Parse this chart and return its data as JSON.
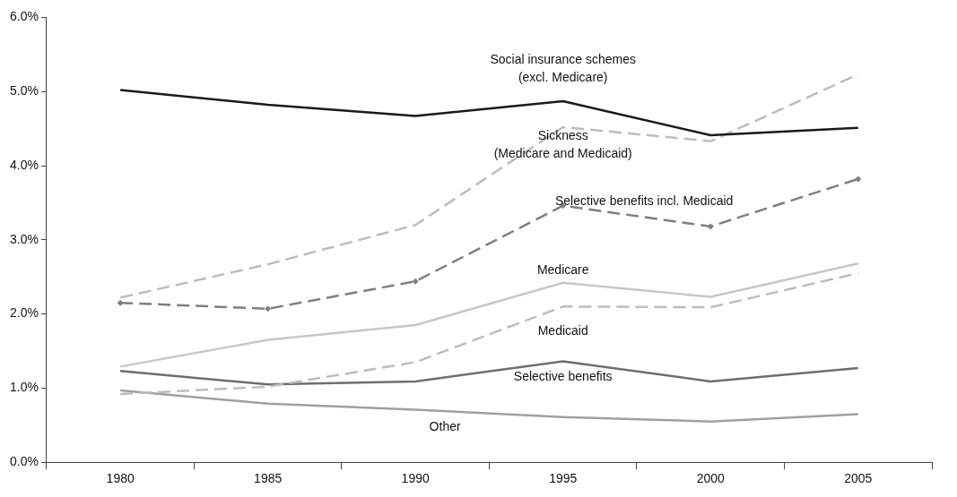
{
  "chart_data": {
    "type": "line",
    "categories": [
      "1980",
      "1985",
      "1990",
      "1995",
      "2000",
      "2005"
    ],
    "ylim": [
      0,
      6
    ],
    "yticks": [
      {
        "value": 0,
        "label": "0.0%"
      },
      {
        "value": 1,
        "label": "1.0%"
      },
      {
        "value": 2,
        "label": "2.0%"
      },
      {
        "value": 3,
        "label": "3.0%"
      },
      {
        "value": 4,
        "label": "4.0%"
      },
      {
        "value": 5,
        "label": "5.0%"
      },
      {
        "value": 6,
        "label": "6.0%"
      }
    ],
    "grid": false,
    "legend": false,
    "series": [
      {
        "name": "Social insurance schemes (excl. Medicare)",
        "color": "#1a1a1a",
        "line_style": "solid",
        "marker": "none",
        "values": [
          5.02,
          4.82,
          4.67,
          4.87,
          4.41,
          4.51
        ]
      },
      {
        "name": "Sickness (Medicare and Medicaid)",
        "color": "#bdbdbd",
        "line_style": "dashed",
        "marker": "none",
        "values": [
          2.22,
          2.67,
          3.2,
          4.52,
          4.33,
          5.23
        ]
      },
      {
        "name": "Selective benefits incl. Medicaid",
        "color": "#7f7f7f",
        "line_style": "dashed",
        "marker": "diamond",
        "values": [
          2.15,
          2.07,
          2.44,
          3.46,
          3.18,
          3.82
        ]
      },
      {
        "name": "Medicare",
        "color": "#c8c8c8",
        "line_style": "solid",
        "marker": "none",
        "values": [
          1.29,
          1.65,
          1.85,
          2.42,
          2.23,
          2.68
        ]
      },
      {
        "name": "Medicaid",
        "color": "#bdbdbd",
        "line_style": "dashed",
        "marker": "none",
        "values": [
          0.92,
          1.02,
          1.35,
          2.1,
          2.09,
          2.55
        ]
      },
      {
        "name": "Selective benefits",
        "color": "#6e6e6e",
        "line_style": "solid",
        "marker": "none",
        "values": [
          1.23,
          1.05,
          1.09,
          1.36,
          1.09,
          1.27
        ]
      },
      {
        "name": "Other",
        "color": "#a0a0a0",
        "line_style": "solid",
        "marker": "none",
        "values": [
          0.97,
          0.79,
          0.71,
          0.61,
          0.55,
          0.65
        ]
      }
    ]
  }
}
